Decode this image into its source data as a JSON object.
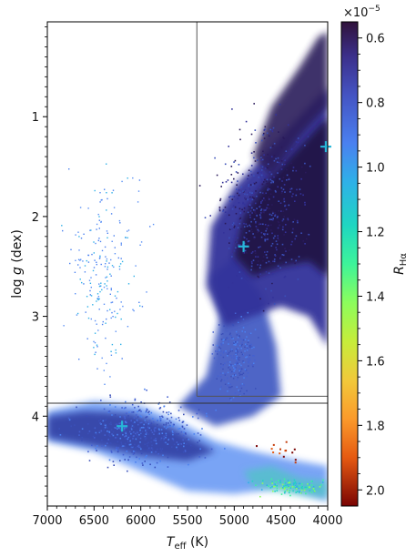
{
  "chart_data": {
    "type": "scatter",
    "xlabel": "T_eff (K)",
    "ylabel": "log g (dex)",
    "colorbar_label": "R_Hα",
    "colorbar_multiplier": "×10^−5",
    "xlim": [
      7000,
      4000
    ],
    "ylim": [
      4.9,
      0.05
    ],
    "x_ticks": [
      7000,
      6500,
      6000,
      5500,
      5000,
      4500,
      4000
    ],
    "x_tick_labels": [
      "7000",
      "6500",
      "6000",
      "5500",
      "5000",
      "4500",
      "4000"
    ],
    "y_ticks": [
      1,
      2,
      3,
      4
    ],
    "y_tick_labels": [
      "1",
      "2",
      "3",
      "4"
    ],
    "colorbar_range": [
      0.55,
      2.05
    ],
    "colorbar_ticks": [
      0.6,
      0.8,
      1.0,
      1.2,
      1.4,
      1.6,
      1.8,
      2.0
    ],
    "colorbar_tick_labels": [
      "0.6",
      "0.8",
      "1.0",
      "1.2",
      "1.4",
      "1.6",
      "1.8",
      "2.0"
    ],
    "colormap": "turbo (reversed)",
    "selection_box": {
      "teff_min": 4000,
      "teff_max": 5400,
      "logg_min": 0.05,
      "logg_max": 3.8
    },
    "horizontal_line_logg": 3.87,
    "markers": [
      {
        "teff": 6200,
        "logg": 4.1
      },
      {
        "teff": 4900,
        "logg": 2.3
      },
      {
        "teff": 4020,
        "logg": 1.3
      }
    ],
    "density_regions": [
      {
        "name": "giant branch",
        "teff": [
          4000,
          5200
        ],
        "logg": [
          0.8,
          3.4
        ],
        "color": "#27184f"
      },
      {
        "name": "subgiant/turnoff",
        "teff": [
          4400,
          5600
        ],
        "logg": [
          3.0,
          3.9
        ],
        "color": "#3f58c4"
      },
      {
        "name": "main sequence",
        "teff": [
          4000,
          7000
        ],
        "logg": [
          3.9,
          4.8
        ],
        "color": "#3a57c7"
      }
    ]
  }
}
